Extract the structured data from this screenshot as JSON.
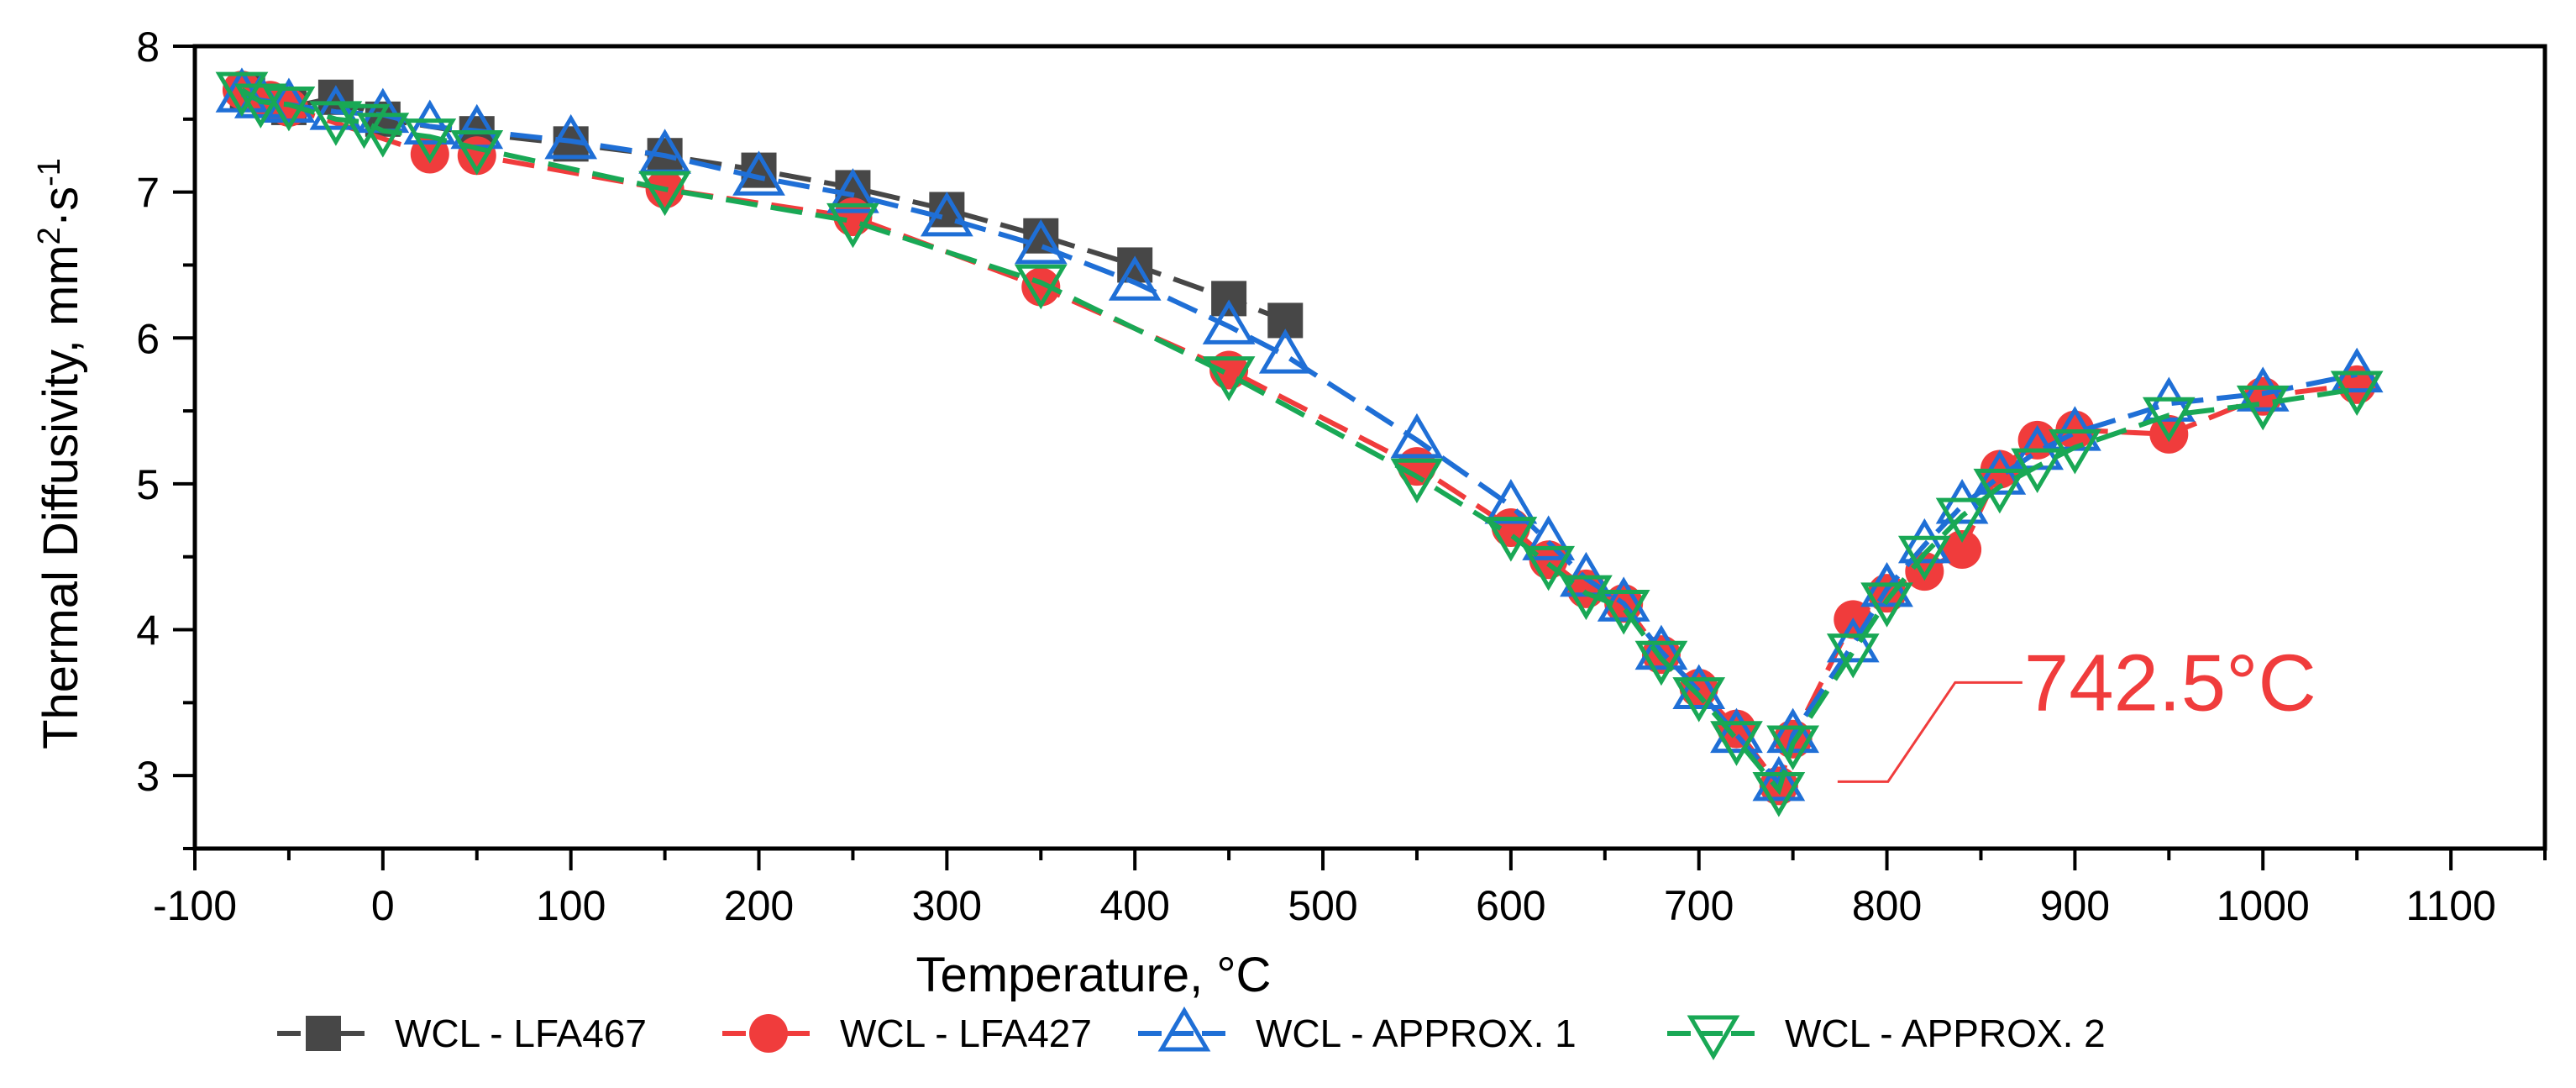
{
  "chart_data": {
    "type": "line",
    "xlabel": "Temperature, °C",
    "ylabel": "Thermal Diffusivity, mm²·s⁻¹",
    "ylabel_parts": {
      "main": "Thermal Diffusivity, mm",
      "sup1": "2",
      "mid": "·s",
      "sup2": "-1"
    },
    "xlim": [
      -100,
      1150
    ],
    "ylim": [
      2.5,
      8
    ],
    "xticks": [
      -100,
      0,
      100,
      200,
      300,
      400,
      500,
      600,
      700,
      800,
      900,
      1000,
      1100
    ],
    "yticks": [
      3,
      4,
      5,
      6,
      7,
      8
    ],
    "grid": false,
    "legend_position": "bottom",
    "series": [
      {
        "name": "WCL - LFA467",
        "color": "#474747",
        "marker": "square",
        "x": [
          -72,
          -50,
          -25,
          0,
          50,
          100,
          150,
          200,
          250,
          300,
          350,
          400,
          450,
          480
        ],
        "y": [
          7.68,
          7.58,
          7.65,
          7.5,
          7.4,
          7.33,
          7.25,
          7.15,
          7.03,
          6.88,
          6.7,
          6.5,
          6.27,
          6.12
        ]
      },
      {
        "name": "WCL - LFA427",
        "color": "#f03c3c",
        "marker": "circle",
        "x": [
          -75,
          -60,
          -50,
          25,
          50,
          150,
          250,
          350,
          450,
          550,
          600,
          620,
          640,
          660,
          680,
          700,
          720,
          742.5,
          750,
          782,
          800,
          820,
          840,
          860,
          880,
          900,
          950,
          1000,
          1050
        ],
        "y": [
          7.7,
          7.63,
          7.58,
          7.26,
          7.25,
          7.02,
          6.83,
          6.35,
          5.78,
          5.12,
          4.7,
          4.48,
          4.28,
          4.18,
          3.83,
          3.6,
          3.32,
          2.93,
          3.25,
          4.07,
          4.25,
          4.4,
          4.55,
          5.1,
          5.3,
          5.37,
          5.34,
          5.6,
          5.68
        ]
      },
      {
        "name": "WCL - APPROX. 1",
        "color": "#1f6fd6",
        "marker": "triangle-up",
        "x": [
          -75,
          -65,
          -50,
          -25,
          0,
          25,
          50,
          100,
          150,
          200,
          250,
          300,
          350,
          400,
          450,
          480,
          550,
          600,
          620,
          640,
          660,
          680,
          700,
          720,
          742.5,
          750,
          782,
          800,
          820,
          840,
          860,
          880,
          900,
          950,
          1000,
          1050
        ],
        "y": [
          7.67,
          7.63,
          7.6,
          7.55,
          7.53,
          7.45,
          7.42,
          7.35,
          7.25,
          7.1,
          6.98,
          6.82,
          6.63,
          6.38,
          6.08,
          5.88,
          5.3,
          4.85,
          4.6,
          4.35,
          4.18,
          3.85,
          3.58,
          3.28,
          2.95,
          3.28,
          3.9,
          4.28,
          4.58,
          4.85,
          5.05,
          5.22,
          5.35,
          5.55,
          5.62,
          5.75
        ]
      },
      {
        "name": "WCL - APPROX. 2",
        "color": "#19a855",
        "marker": "triangle-down",
        "x": [
          -75,
          -65,
          -50,
          -25,
          -10,
          0,
          25,
          50,
          150,
          250,
          350,
          450,
          550,
          600,
          620,
          640,
          660,
          680,
          700,
          720,
          742.5,
          750,
          782,
          800,
          820,
          840,
          860,
          880,
          900,
          950,
          1000,
          1050
        ],
        "y": [
          7.7,
          7.62,
          7.6,
          7.5,
          7.48,
          7.42,
          7.38,
          7.3,
          7.02,
          6.8,
          6.38,
          5.75,
          5.05,
          4.65,
          4.45,
          4.25,
          4.15,
          3.8,
          3.55,
          3.25,
          2.9,
          3.22,
          3.85,
          4.2,
          4.52,
          4.78,
          4.98,
          5.12,
          5.25,
          5.47,
          5.55,
          5.65
        ]
      }
    ],
    "annotations": [
      {
        "text": "742.5°C",
        "color": "#f03c3c",
        "x": 742.5,
        "y": 2.93
      }
    ]
  }
}
